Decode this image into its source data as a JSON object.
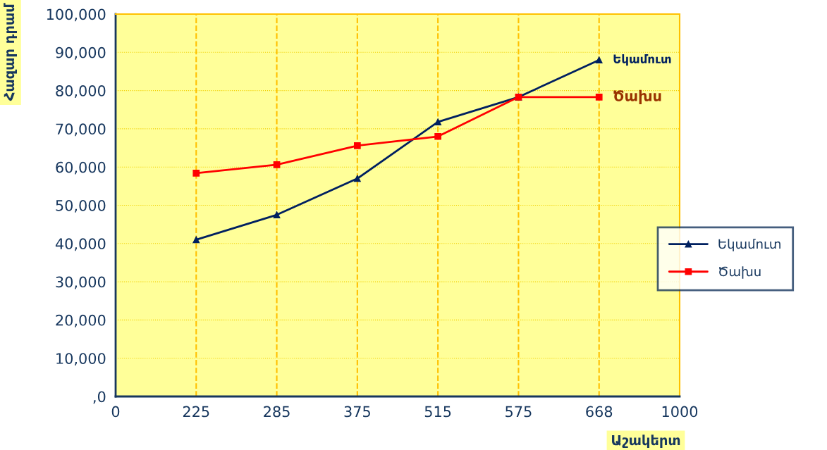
{
  "chart_data": {
    "type": "line",
    "xlabel": "Աշակերտ",
    "ylabel": "Հազար դրամ",
    "categories": [
      "0",
      "225",
      "285",
      "375",
      "515",
      "575",
      "668",
      "1000"
    ],
    "series": [
      {
        "name": "Եկամուտ",
        "color": "#002060",
        "marker": "triangle",
        "values": [
          null,
          41000,
          47500,
          57000,
          71800,
          78300,
          88000,
          null
        ]
      },
      {
        "name": "Ծախս",
        "color": "#ff0000",
        "marker": "square",
        "values": [
          null,
          58400,
          60600,
          65600,
          68000,
          78300,
          78300,
          null
        ]
      }
    ],
    "annotations": [
      {
        "text": "Եկամուտ",
        "x": "668",
        "y": 88000
      },
      {
        "text": "Ծախս",
        "x": "668",
        "y": 78300
      }
    ],
    "ylim": [
      0,
      100000
    ],
    "yticks": [
      {
        "value": 0,
        "label": ",0"
      },
      {
        "value": 10000,
        "label": "10,000"
      },
      {
        "value": 20000,
        "label": "20,000"
      },
      {
        "value": 30000,
        "label": "30,000"
      },
      {
        "value": 40000,
        "label": "40,000"
      },
      {
        "value": 50000,
        "label": "50,000"
      },
      {
        "value": 60000,
        "label": "60,000"
      },
      {
        "value": 70000,
        "label": "70,000"
      },
      {
        "value": 80000,
        "label": "80,000"
      },
      {
        "value": 90000,
        "label": "90,000"
      },
      {
        "value": 100000,
        "label": "100,000"
      }
    ],
    "grid": true,
    "legend": "right",
    "line_style": "solid"
  }
}
